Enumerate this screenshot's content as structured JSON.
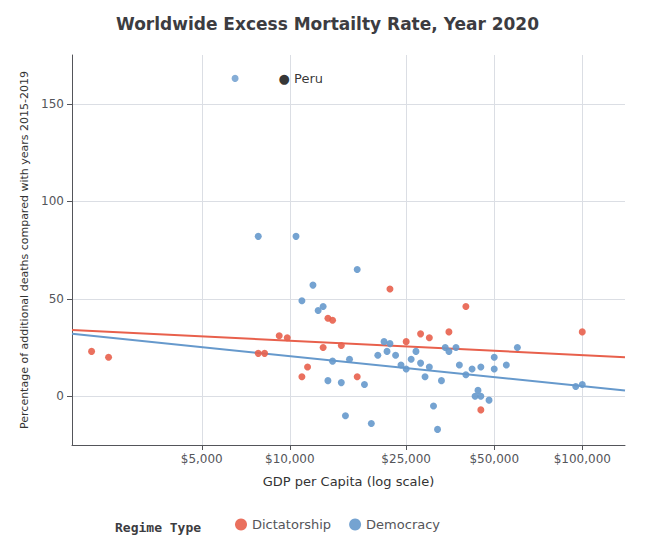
{
  "chart_data": {
    "type": "scatter",
    "title": "Worldwide Excess Mortailty Rate, Year 2020",
    "xlabel": "GDP per Capita (log scale)",
    "ylabel": "Percentage of additional deaths compared with years 2015-2019",
    "legend_title": "Regime Type",
    "legend": "bottom",
    "log": "x",
    "grid": true,
    "xlim": [
      1800,
      140000
    ],
    "ylim": [
      -25,
      175
    ],
    "xticks": [
      {
        "value": 5000,
        "label": "$5,000"
      },
      {
        "value": 10000,
        "label": "$10,000"
      },
      {
        "value": 25000,
        "label": "$25,000"
      },
      {
        "value": 50000,
        "label": "$50,000"
      },
      {
        "value": 100000,
        "label": "$100,000"
      }
    ],
    "yticks": [
      0,
      50,
      100,
      150
    ],
    "series": [
      {
        "name": "Dictatorship",
        "color": "#e8604c",
        "marker": "circle",
        "x": [
          2100,
          2400,
          7800,
          8200,
          9200,
          9800,
          11000,
          11500,
          13000,
          13500,
          14000,
          15000,
          17000,
          22000,
          25000,
          28000,
          30000,
          35000,
          40000,
          45000,
          100000
        ],
        "values": [
          23,
          20,
          22,
          22,
          31,
          30,
          10,
          15,
          25,
          40,
          39,
          26,
          10,
          55,
          28,
          32,
          30,
          33,
          46,
          -7,
          33
        ],
        "trend": {
          "x": [
            1800,
            140000
          ],
          "values": [
            34,
            20
          ]
        }
      },
      {
        "name": "Democracy",
        "color": "#6699cc",
        "marker": "circle",
        "x": [
          7800,
          10500,
          11000,
          12000,
          12500,
          13000,
          13500,
          14000,
          15000,
          15500,
          16000,
          17000,
          18000,
          19000,
          20000,
          21000,
          21500,
          22000,
          23000,
          24000,
          25000,
          26000,
          27000,
          28000,
          29000,
          30000,
          31000,
          32000,
          33000,
          34000,
          35000,
          37000,
          38000,
          40000,
          42000,
          43000,
          44000,
          45000,
          48000,
          50000,
          55000,
          60000,
          95000,
          100000,
          45000,
          50000
        ],
        "values": [
          82,
          82,
          49,
          57,
          44,
          46,
          8,
          18,
          7,
          -10,
          19,
          65,
          6,
          -14,
          21,
          28,
          23,
          27,
          21,
          16,
          14,
          19,
          23,
          17,
          10,
          15,
          -5,
          -17,
          8,
          25,
          23,
          25,
          16,
          11,
          14,
          0,
          3,
          0,
          -2,
          14,
          16,
          25,
          5,
          6,
          15,
          20
        ],
        "trend": {
          "x": [
            1800,
            140000
          ],
          "values": [
            32,
            3
          ]
        }
      }
    ],
    "annotations": [
      {
        "text": "● Peru",
        "x": 6500,
        "y": 163,
        "color": "#6699cc"
      }
    ]
  }
}
